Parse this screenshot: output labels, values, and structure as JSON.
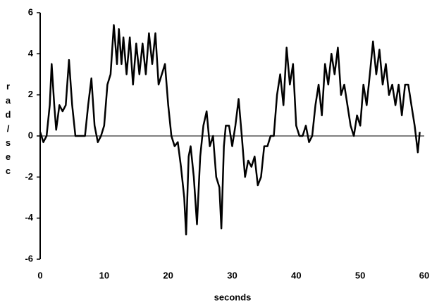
{
  "chart_data": {
    "type": "line",
    "xlabel": "seconds",
    "ylabel": "rad/sec",
    "color": "#000000",
    "x": [
      0,
      0.5,
      1,
      1.5,
      1.8,
      2.2,
      2.5,
      3,
      3.5,
      4,
      4.5,
      5,
      5.5,
      6,
      7,
      7.5,
      8,
      8.5,
      9,
      9.5,
      10,
      10.5,
      11,
      11.5,
      12,
      12.3,
      12.7,
      13,
      13.5,
      14,
      14.5,
      15,
      15.5,
      16,
      16.5,
      17,
      17.5,
      18,
      18.5,
      19,
      19.5,
      20,
      20.5,
      21,
      21.5,
      22,
      22.5,
      22.8,
      23.2,
      23.5,
      24,
      24.5,
      25,
      25.5,
      26,
      26.5,
      27,
      27.5,
      28,
      28.3,
      28.7,
      29,
      29.5,
      30,
      30.5,
      31,
      31.5,
      32,
      32.5,
      33,
      33.5,
      34,
      34.5,
      35,
      35.5,
      36,
      36.5,
      37,
      37.5,
      38,
      38.5,
      39,
      39.5,
      40,
      40.5,
      41,
      41.5,
      42,
      42.5,
      43,
      43.5,
      44,
      44.5,
      45,
      45.5,
      46,
      46.5,
      47,
      47.5,
      48,
      48.5,
      49,
      49.5,
      50,
      50.5,
      51,
      51.5,
      52,
      52.5,
      53,
      53.5,
      54,
      54.5,
      55,
      55.5,
      56,
      56.5,
      57,
      57.5,
      58,
      58.5,
      59,
      59.3
    ],
    "values": [
      0.2,
      -0.3,
      0,
      1.5,
      3.5,
      1.5,
      0.3,
      1.5,
      1.2,
      1.5,
      3.7,
      1.5,
      0,
      0,
      0,
      1.5,
      2.8,
      0.5,
      -0.3,
      0,
      0.5,
      2.5,
      3,
      5.4,
      3.5,
      5.2,
      3.5,
      4.8,
      3,
      4.8,
      2.5,
      4.5,
      3,
      4.5,
      3,
      5,
      3.5,
      5,
      2.5,
      3,
      3.5,
      1.5,
      0,
      -0.5,
      -0.3,
      -1.5,
      -3,
      -4.8,
      -1,
      -0.5,
      -2,
      -4.3,
      -1,
      0.5,
      1.2,
      -0.5,
      0,
      -2,
      -2.5,
      -4.5,
      -0.5,
      0.5,
      0.5,
      -0.5,
      0.5,
      1.8,
      0,
      -2,
      -1.2,
      -1.5,
      -1,
      -2.4,
      -2,
      -0.5,
      -0.5,
      0,
      0,
      2,
      3,
      1.5,
      4.3,
      2.5,
      3.5,
      0.5,
      0,
      0,
      0.5,
      -0.3,
      0,
      1.5,
      2.5,
      1,
      3.5,
      2.5,
      4,
      3,
      4.3,
      2,
      2.5,
      1.5,
      0.5,
      0,
      1,
      0.5,
      2.5,
      1.5,
      3,
      4.6,
      3,
      4.2,
      2.5,
      3.5,
      2,
      2.5,
      1.5,
      2.5,
      1,
      2.5,
      2.5,
      1.5,
      0.5,
      -0.8,
      0.2
    ],
    "xlim": [
      0,
      60
    ],
    "xticks": [
      0,
      10,
      20,
      30,
      40,
      50,
      60
    ],
    "ylim": [
      -6,
      6
    ],
    "yticks": [
      -6,
      -4,
      -2,
      0,
      2,
      4,
      6
    ]
  }
}
